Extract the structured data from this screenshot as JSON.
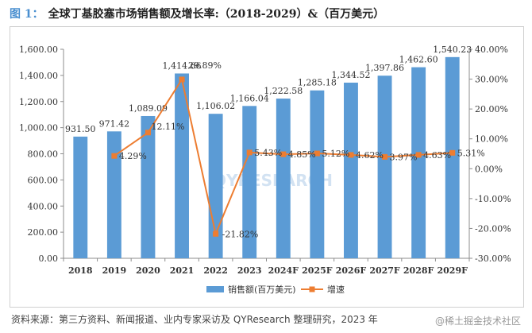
{
  "title": {
    "fig": "图 1：",
    "text": "全球丁基胶塞市场销售额及增长率:（2018-2029）&（百万美元）"
  },
  "source": "资料来源：第三方资料、新闻报道、业内专家采访及 QYResearch 整理研究，2023 年",
  "watermark": "@稀土掘金技术社区",
  "chart_logo": "QYRESEARCH",
  "colors": {
    "bar": "#5b9bd5",
    "line": "#ed7d31"
  },
  "chart_data": {
    "type": "bar",
    "categories": [
      "2018",
      "2019",
      "2020",
      "2021",
      "2022",
      "2023",
      "2024F",
      "2025F",
      "2026F",
      "2027F",
      "2028F",
      "2029F"
    ],
    "series": [
      {
        "name": "销售额(百万美元)",
        "type": "bar",
        "axis": "left",
        "values": [
          931.5,
          971.42,
          1089.09,
          1414.66,
          1106.02,
          1166.04,
          1222.58,
          1285.18,
          1344.52,
          1397.86,
          1462.6,
          1540.23
        ],
        "labels": [
          "931.50",
          "971.42",
          "1,089.09",
          "1,414.66",
          "1,106.02",
          "1,166.04",
          "1,222.58",
          "1,285.18",
          "1,344.52",
          "1,397.86",
          "1,462.60",
          "1,540.23"
        ]
      },
      {
        "name": "增速",
        "type": "line",
        "axis": "right",
        "values": [
          null,
          4.29,
          12.11,
          29.89,
          -21.82,
          5.43,
          4.85,
          5.12,
          4.62,
          3.97,
          4.63,
          5.31
        ],
        "labels": [
          "",
          "4.29%",
          "12.11%",
          "29.89%",
          "-21.82%",
          "5.43%",
          "4.85%",
          "5.12%",
          "4.62%",
          "3.97%",
          "4.63%",
          "5.31%"
        ]
      }
    ],
    "y_left": {
      "min": 0,
      "max": 1600,
      "step": 200,
      "ticks": [
        "0.00",
        "200.00",
        "400.00",
        "600.00",
        "800.00",
        "1,000.00",
        "1,200.00",
        "1,400.00",
        "1,600.00"
      ]
    },
    "y_right": {
      "min": -30,
      "max": 40,
      "step": 10,
      "ticks": [
        "-30.00%",
        "-20.00%",
        "-10.00%",
        "0.00%",
        "10.00%",
        "20.00%",
        "30.00%",
        "40.00%"
      ]
    },
    "legend": [
      "销售额(百万美元)",
      "增速"
    ],
    "legend_position": "bottom",
    "grid": false
  }
}
